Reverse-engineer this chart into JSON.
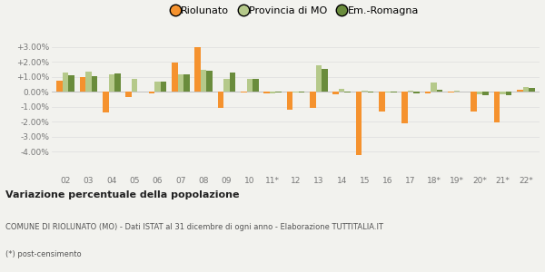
{
  "categories": [
    "02",
    "03",
    "04",
    "05",
    "06",
    "07",
    "08",
    "09",
    "10",
    "11*",
    "12",
    "13",
    "14",
    "15",
    "16",
    "17",
    "18*",
    "19*",
    "20*",
    "21*",
    "22*"
  ],
  "riolunato": [
    0.75,
    1.0,
    -1.35,
    -0.35,
    -0.1,
    1.95,
    3.0,
    -1.1,
    -0.05,
    -0.1,
    -1.2,
    -1.1,
    -0.15,
    -4.2,
    -1.3,
    -2.1,
    -0.1,
    -0.05,
    -1.3,
    -2.05,
    0.15
  ],
  "provincia_mo": [
    1.3,
    1.35,
    1.2,
    0.85,
    0.7,
    1.2,
    1.5,
    0.9,
    0.85,
    -0.1,
    -0.05,
    1.75,
    0.2,
    0.1,
    -0.05,
    0.1,
    0.6,
    0.1,
    -0.15,
    -0.15,
    0.3
  ],
  "em_romagna": [
    1.1,
    1.05,
    1.25,
    0.0,
    0.7,
    1.15,
    1.4,
    1.3,
    0.85,
    -0.05,
    -0.05,
    1.55,
    -0.05,
    -0.05,
    -0.05,
    -0.1,
    0.15,
    0.05,
    -0.2,
    -0.25,
    0.25
  ],
  "color_riolunato": "#f5922e",
  "color_provincia": "#b5c98a",
  "color_emromagna": "#6a8c3c",
  "title_bold": "Variazione percentuale della popolazione",
  "subtitle": "COMUNE DI RIOLUNATO (MO) - Dati ISTAT al 31 dicembre di ogni anno - Elaborazione TUTTITALIA.IT",
  "footnote": "(*) post-censimento",
  "legend_labels": [
    "Riolunato",
    "Provincia di MO",
    "Em.-Romagna"
  ],
  "ylim": [
    -5.5,
    3.6
  ],
  "yticks": [
    -4.0,
    -3.0,
    -2.0,
    -1.0,
    0.0,
    1.0,
    2.0,
    3.0
  ],
  "ytick_labels": [
    "-4.00%",
    "-3.00%",
    "-2.00%",
    "-1.00%",
    "0.00%",
    "+1.00%",
    "+2.00%",
    "+3.00%"
  ],
  "bg_color": "#f2f2ee",
  "bar_width": 0.26
}
